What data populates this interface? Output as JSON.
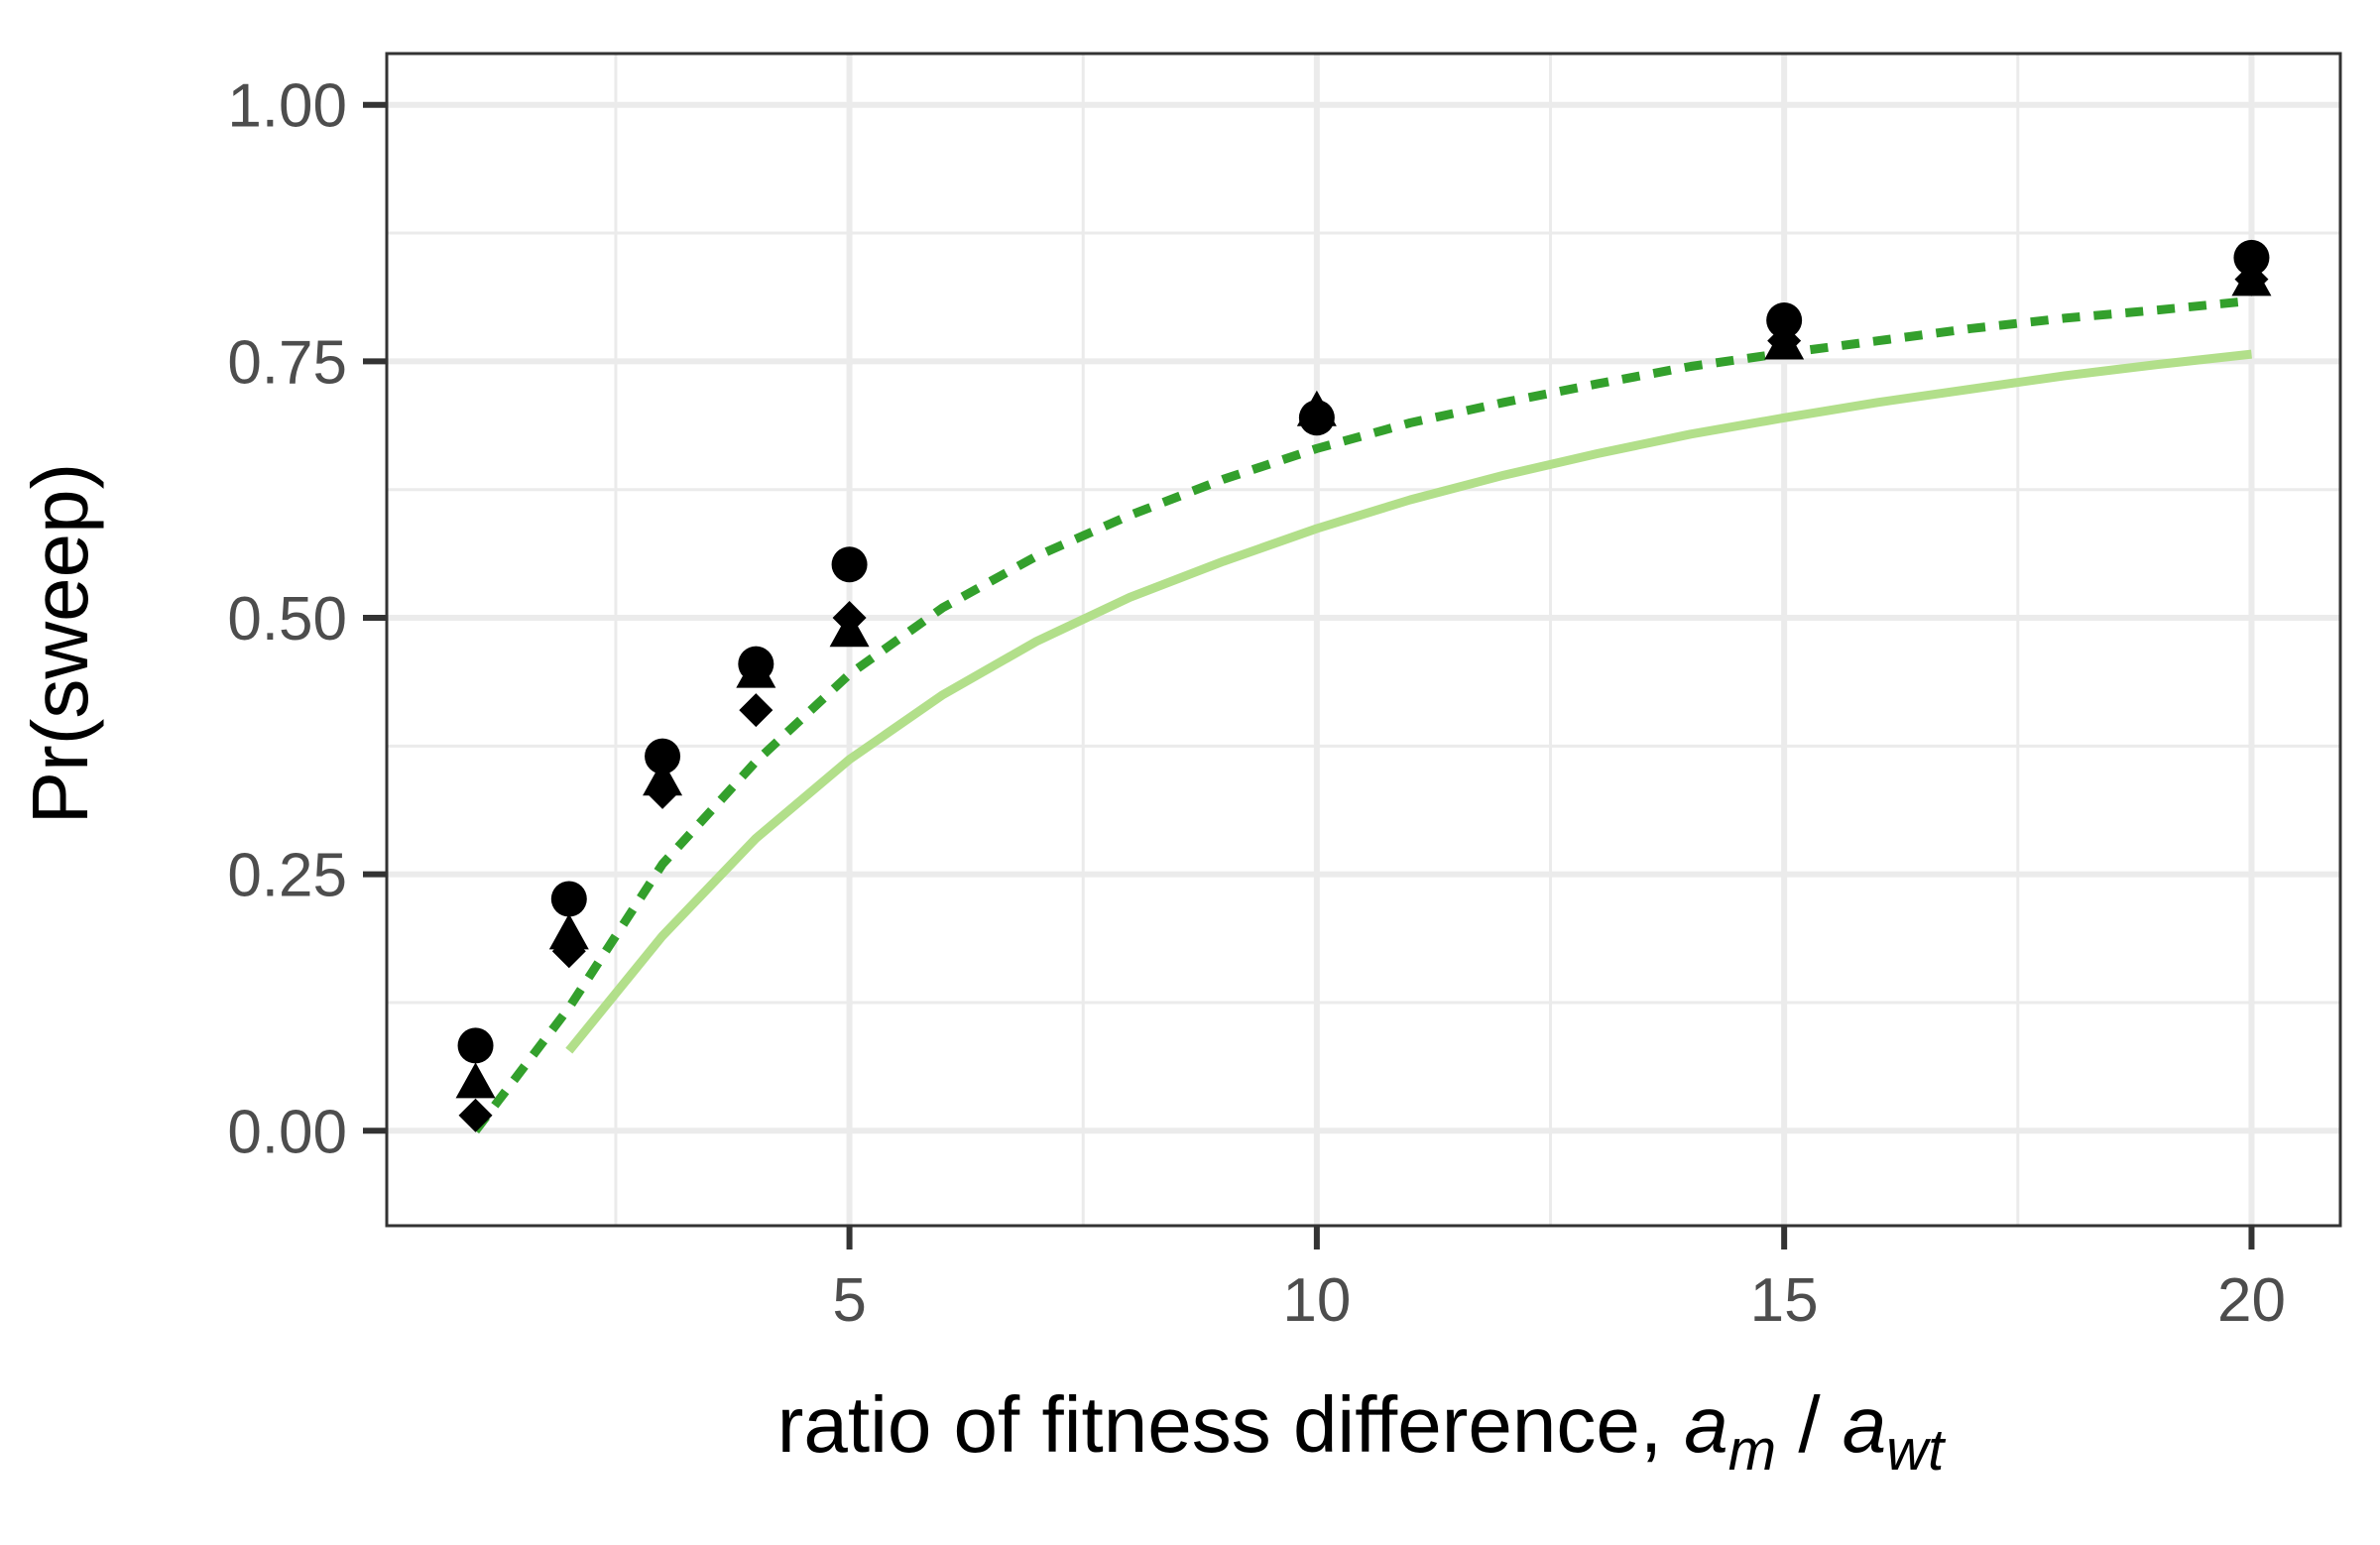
{
  "chart_data": {
    "type": "scatter",
    "title": "",
    "xlabel_text": "ratio of fitness difference, ",
    "xlabel_math": {
      "a1": "a",
      "sub1": "m",
      "sep": " / ",
      "a2": "a",
      "sub2": "wt"
    },
    "ylabel": "Pr(sweep)",
    "xlim": [
      0.05,
      20.95
    ],
    "ylim": [
      -0.0925,
      1.05
    ],
    "x_ticks": [
      5,
      10,
      15,
      20
    ],
    "x_tick_labels": [
      "5",
      "10",
      "15",
      "20"
    ],
    "x_minor_ticks": [
      2.5,
      7.5,
      12.5,
      17.5
    ],
    "y_ticks": [
      0,
      0.25,
      0.5,
      0.75,
      1.0
    ],
    "y_tick_labels": [
      "0.00",
      "0.25",
      "0.50",
      "0.75",
      "1.00"
    ],
    "y_minor_ticks": [
      0.125,
      0.375,
      0.625,
      0.875
    ],
    "grid": true,
    "legend": "none",
    "colors": {
      "grid": "#ebebeb",
      "panel_border": "#333333",
      "points": "#000000",
      "dashed_line": "#33a02c",
      "solid_line": "#b2df8a"
    },
    "lines": [
      {
        "style": "solid",
        "color": "#b2df8a",
        "x": [
          2,
          3,
          4,
          5,
          6,
          7,
          8,
          9,
          10,
          11,
          12,
          13,
          14,
          15,
          16,
          17,
          18,
          19,
          20
        ],
        "y": [
          0.078,
          0.19,
          0.285,
          0.362,
          0.425,
          0.477,
          0.52,
          0.555,
          0.587,
          0.615,
          0.639,
          0.66,
          0.679,
          0.695,
          0.71,
          0.723,
          0.736,
          0.747,
          0.757
        ]
      },
      {
        "style": "dashed",
        "color": "#33a02c",
        "x": [
          1,
          2,
          3,
          4,
          5,
          6,
          7,
          8,
          9,
          10,
          11,
          12,
          13,
          14,
          15,
          16,
          17,
          18,
          19,
          20
        ],
        "y": [
          0.0,
          0.12,
          0.26,
          0.36,
          0.445,
          0.51,
          0.56,
          0.6,
          0.635,
          0.665,
          0.69,
          0.71,
          0.728,
          0.745,
          0.758,
          0.77,
          0.782,
          0.792,
          0.8,
          0.809
        ]
      }
    ],
    "point_series": [
      {
        "shape": "circle",
        "x": [
          1,
          2,
          3,
          4,
          5,
          10,
          15,
          20
        ],
        "y": [
          0.083,
          0.226,
          0.365,
          0.455,
          0.552,
          0.695,
          0.79,
          0.851
        ]
      },
      {
        "shape": "triangle",
        "x": [
          1,
          2,
          3,
          4,
          5,
          10,
          15,
          20
        ],
        "y": [
          0.045,
          0.19,
          0.34,
          0.445,
          0.485,
          0.7,
          0.765,
          0.827
        ]
      },
      {
        "shape": "diamond",
        "x": [
          1,
          2,
          3,
          4,
          5,
          10,
          15,
          20
        ],
        "y": [
          0.015,
          0.175,
          0.33,
          0.41,
          0.5,
          0.7,
          0.77,
          0.83
        ]
      }
    ]
  }
}
